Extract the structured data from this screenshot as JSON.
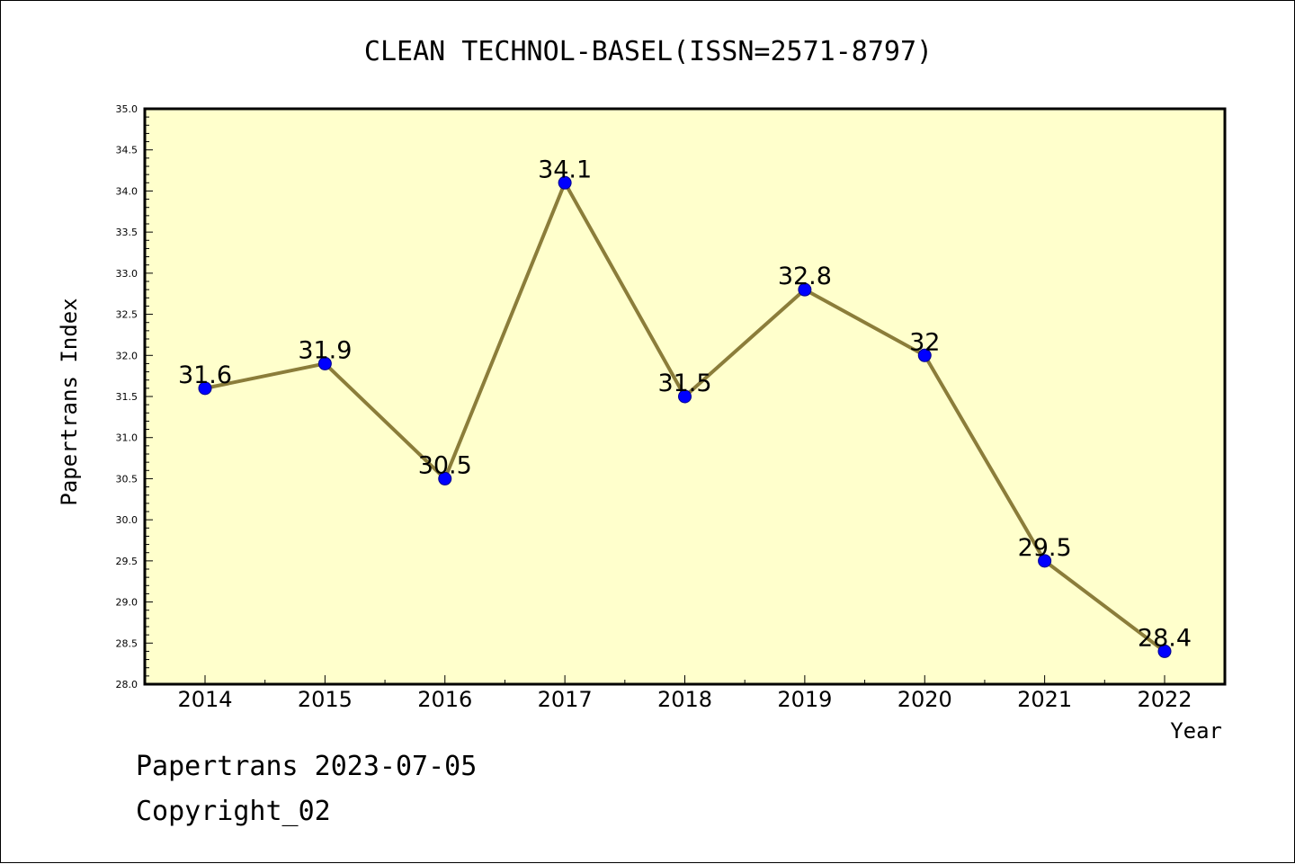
{
  "chart_data": {
    "type": "line",
    "title": "CLEAN TECHNOL-BASEL(ISSN=2571-8797)",
    "xlabel": "Year",
    "ylabel": "Papertrans Index",
    "categories": [
      "2014",
      "2015",
      "2016",
      "2017",
      "2018",
      "2019",
      "2020",
      "2021",
      "2022"
    ],
    "series": [
      {
        "values": [
          31.6,
          31.9,
          30.5,
          34.1,
          31.5,
          32.8,
          32,
          29.5,
          28.4
        ],
        "data_labels": [
          "31.6",
          "31.9",
          "30.5",
          "34.1",
          "31.5",
          "32.8",
          "32",
          "29.5",
          "28.4"
        ]
      }
    ],
    "ylim": [
      28.0,
      35.0
    ],
    "y_ticks": [
      "28.0",
      "28.5",
      "29.0",
      "29.5",
      "30.0",
      "30.5",
      "31.0",
      "31.5",
      "32.0",
      "32.5",
      "33.0",
      "33.5",
      "34.0",
      "34.5",
      "35.0"
    ],
    "grid": false,
    "legend": "none",
    "colors": {
      "plot_background": "#ffffcc",
      "line": "#8b7d3a",
      "marker": "#0000ff"
    }
  },
  "footer": {
    "line1": "Papertrans 2023-07-05",
    "line2": "Copyright_02"
  }
}
